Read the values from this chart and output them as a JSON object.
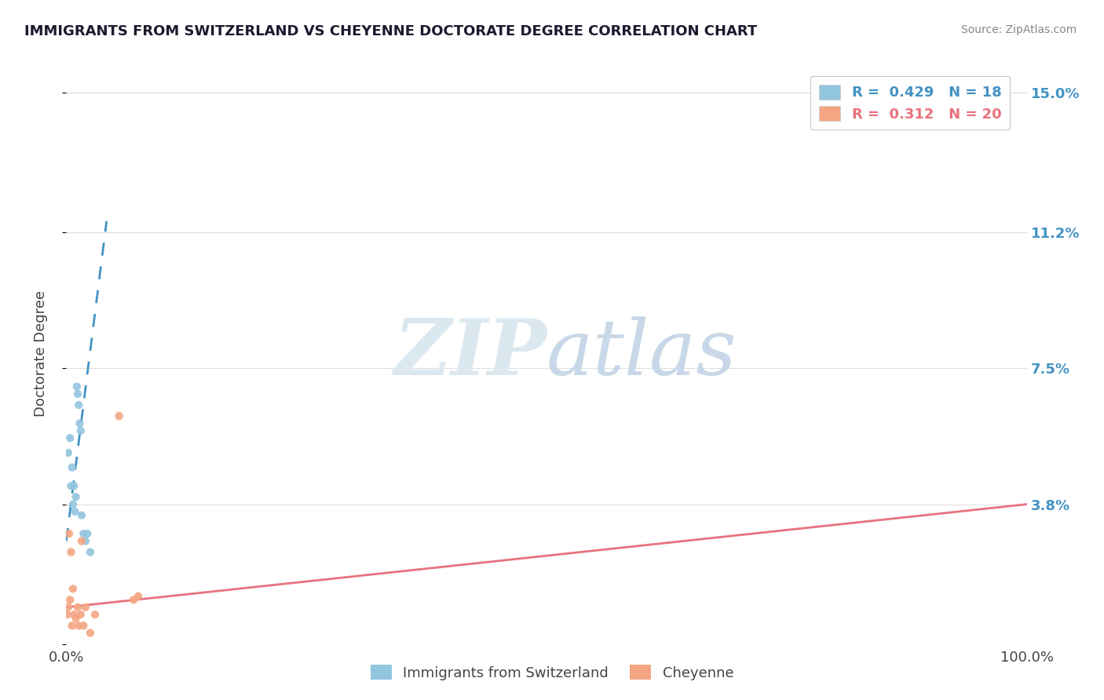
{
  "title": "IMMIGRANTS FROM SWITZERLAND VS CHEYENNE DOCTORATE DEGREE CORRELATION CHART",
  "source": "Source: ZipAtlas.com",
  "ylabel": "Doctorate Degree",
  "R1": 0.429,
  "N1": 18,
  "R2": 0.312,
  "N2": 20,
  "color_blue": "#92c5de",
  "color_pink": "#f4a582",
  "color_blue_line": "#4393c3",
  "color_pink_line": "#e8727e",
  "scatter_blue_x": [
    0.002,
    0.004,
    0.005,
    0.006,
    0.007,
    0.008,
    0.009,
    0.01,
    0.011,
    0.012,
    0.013,
    0.014,
    0.015,
    0.016,
    0.018,
    0.02,
    0.022,
    0.025
  ],
  "scatter_blue_y": [
    0.052,
    0.056,
    0.043,
    0.048,
    0.038,
    0.043,
    0.036,
    0.04,
    0.07,
    0.068,
    0.065,
    0.06,
    0.058,
    0.035,
    0.03,
    0.028,
    0.03,
    0.025
  ],
  "scatter_pink_x": [
    0.001,
    0.002,
    0.003,
    0.004,
    0.005,
    0.006,
    0.007,
    0.008,
    0.01,
    0.012,
    0.013,
    0.015,
    0.016,
    0.018,
    0.02,
    0.025,
    0.03,
    0.055,
    0.07,
    0.075
  ],
  "scatter_pink_y": [
    0.008,
    0.01,
    0.03,
    0.012,
    0.025,
    0.005,
    0.015,
    0.008,
    0.007,
    0.01,
    0.005,
    0.008,
    0.028,
    0.005,
    0.01,
    0.003,
    0.008,
    0.062,
    0.012,
    0.013
  ],
  "blue_trend_x": [
    0.0,
    0.042
  ],
  "blue_trend_y": [
    0.028,
    0.115
  ],
  "pink_trend_x": [
    0.0,
    1.0
  ],
  "pink_trend_y": [
    0.01,
    0.038
  ],
  "xlim": [
    0.0,
    1.0
  ],
  "ylim": [
    0.0,
    0.158
  ],
  "y_ticks": [
    0.0,
    0.038,
    0.075,
    0.112,
    0.15
  ],
  "y_tick_labels": [
    "",
    "3.8%",
    "7.5%",
    "11.2%",
    "15.0%"
  ],
  "legend1_label": "Immigrants from Switzerland",
  "legend2_label": "Cheyenne",
  "watermark_zip": "ZIP",
  "watermark_atlas": "atlas",
  "watermark_color": "#dce8f0",
  "background_color": "#ffffff",
  "title_color": "#1a1a2e",
  "source_color": "#888888",
  "axis_label_color": "#444444",
  "grid_color": "#e0e0e0"
}
